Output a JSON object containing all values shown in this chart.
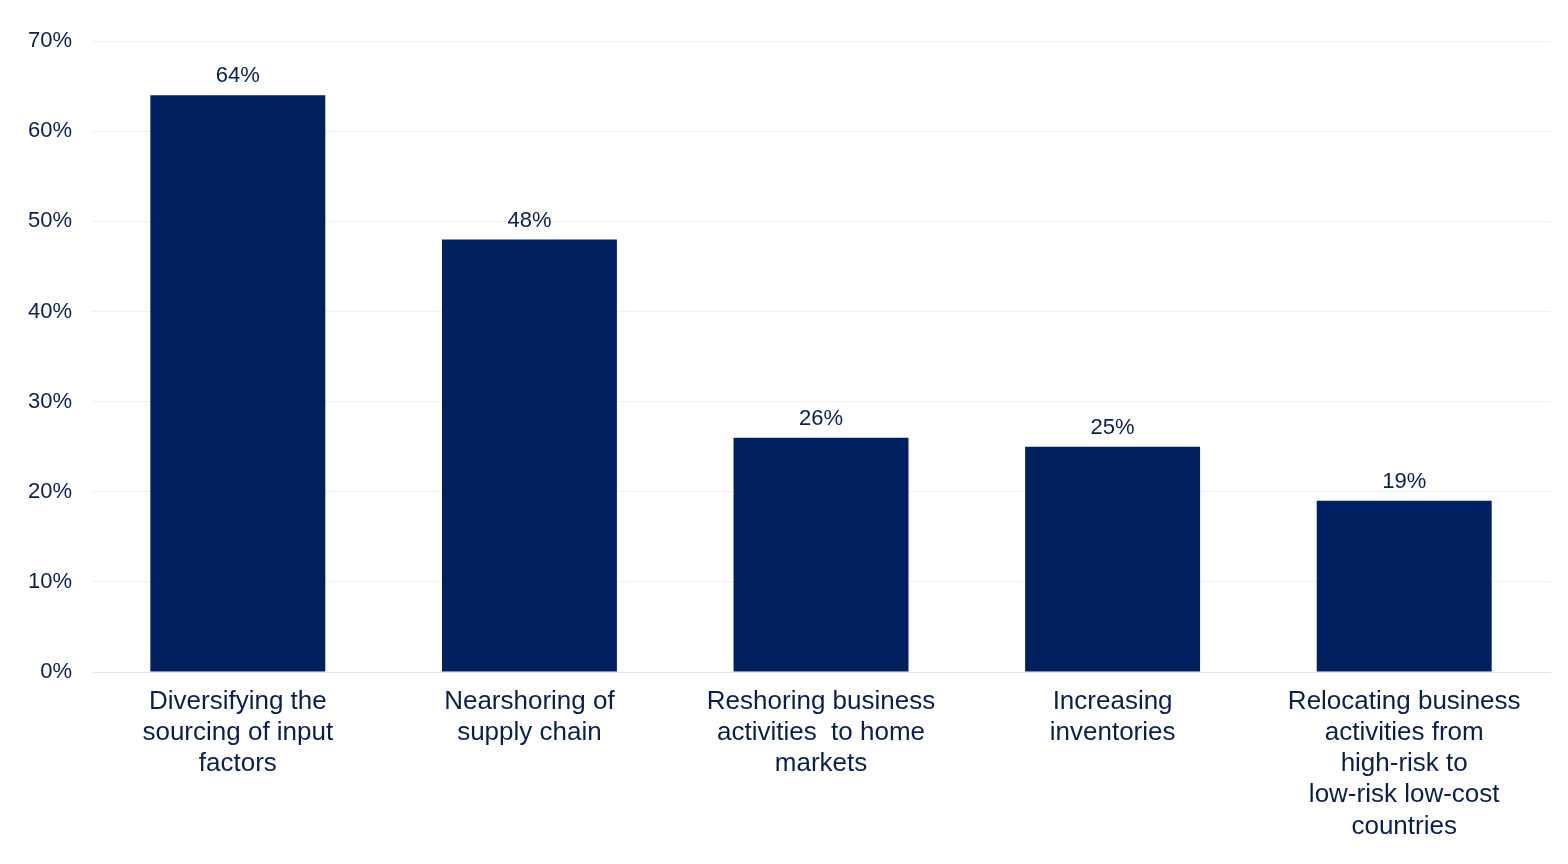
{
  "chart_data": {
    "type": "bar",
    "categories": [
      "Diversifying the sourcing of input factors",
      "Nearshoring of supply chain",
      "Reshoring business activities  to home markets",
      "Increasing inventories",
      "Relocating business activities from high-risk to low-risk low-cost countries"
    ],
    "values": [
      64,
      48,
      26,
      25,
      19
    ],
    "color": "#012060",
    "ylim": [
      0,
      70
    ],
    "yticks": [
      {
        "value": 0,
        "label": "0%"
      },
      {
        "value": 10,
        "label": "10%"
      },
      {
        "value": 20,
        "label": "20%"
      },
      {
        "value": 30,
        "label": "30%"
      },
      {
        "value": 40,
        "label": "40%"
      },
      {
        "value": 50,
        "label": "50%"
      },
      {
        "value": 60,
        "label": "60%"
      },
      {
        "value": 70,
        "label": "70%"
      }
    ],
    "value_labels": [
      "64%",
      "48%",
      "26%",
      "25%",
      "19%"
    ],
    "grid": "y"
  }
}
